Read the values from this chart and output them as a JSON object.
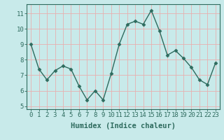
{
  "x": [
    0,
    1,
    2,
    3,
    4,
    5,
    6,
    7,
    8,
    9,
    10,
    11,
    12,
    13,
    14,
    15,
    16,
    17,
    18,
    19,
    20,
    21,
    22,
    23
  ],
  "y": [
    9.0,
    7.4,
    6.7,
    7.3,
    7.6,
    7.4,
    6.3,
    5.4,
    6.0,
    5.4,
    7.1,
    9.0,
    10.3,
    10.5,
    10.3,
    11.2,
    9.9,
    8.3,
    8.6,
    8.1,
    7.5,
    6.7,
    6.4,
    7.8
  ],
  "xlabel": "Humidex (Indice chaleur)",
  "ylim": [
    4.8,
    11.6
  ],
  "xlim": [
    -0.5,
    23.5
  ],
  "yticks": [
    5,
    6,
    7,
    8,
    9,
    10,
    11
  ],
  "xticks": [
    0,
    1,
    2,
    3,
    4,
    5,
    6,
    7,
    8,
    9,
    10,
    11,
    12,
    13,
    14,
    15,
    16,
    17,
    18,
    19,
    20,
    21,
    22,
    23
  ],
  "line_color": "#2e6b5e",
  "marker": "D",
  "marker_size": 2.5,
  "line_width": 1.0,
  "bg_color": "#c8eaea",
  "grid_color": "#e8b0b0",
  "axes_color": "#2e6b5e",
  "tick_fontsize": 6.5,
  "xlabel_fontsize": 7.5
}
